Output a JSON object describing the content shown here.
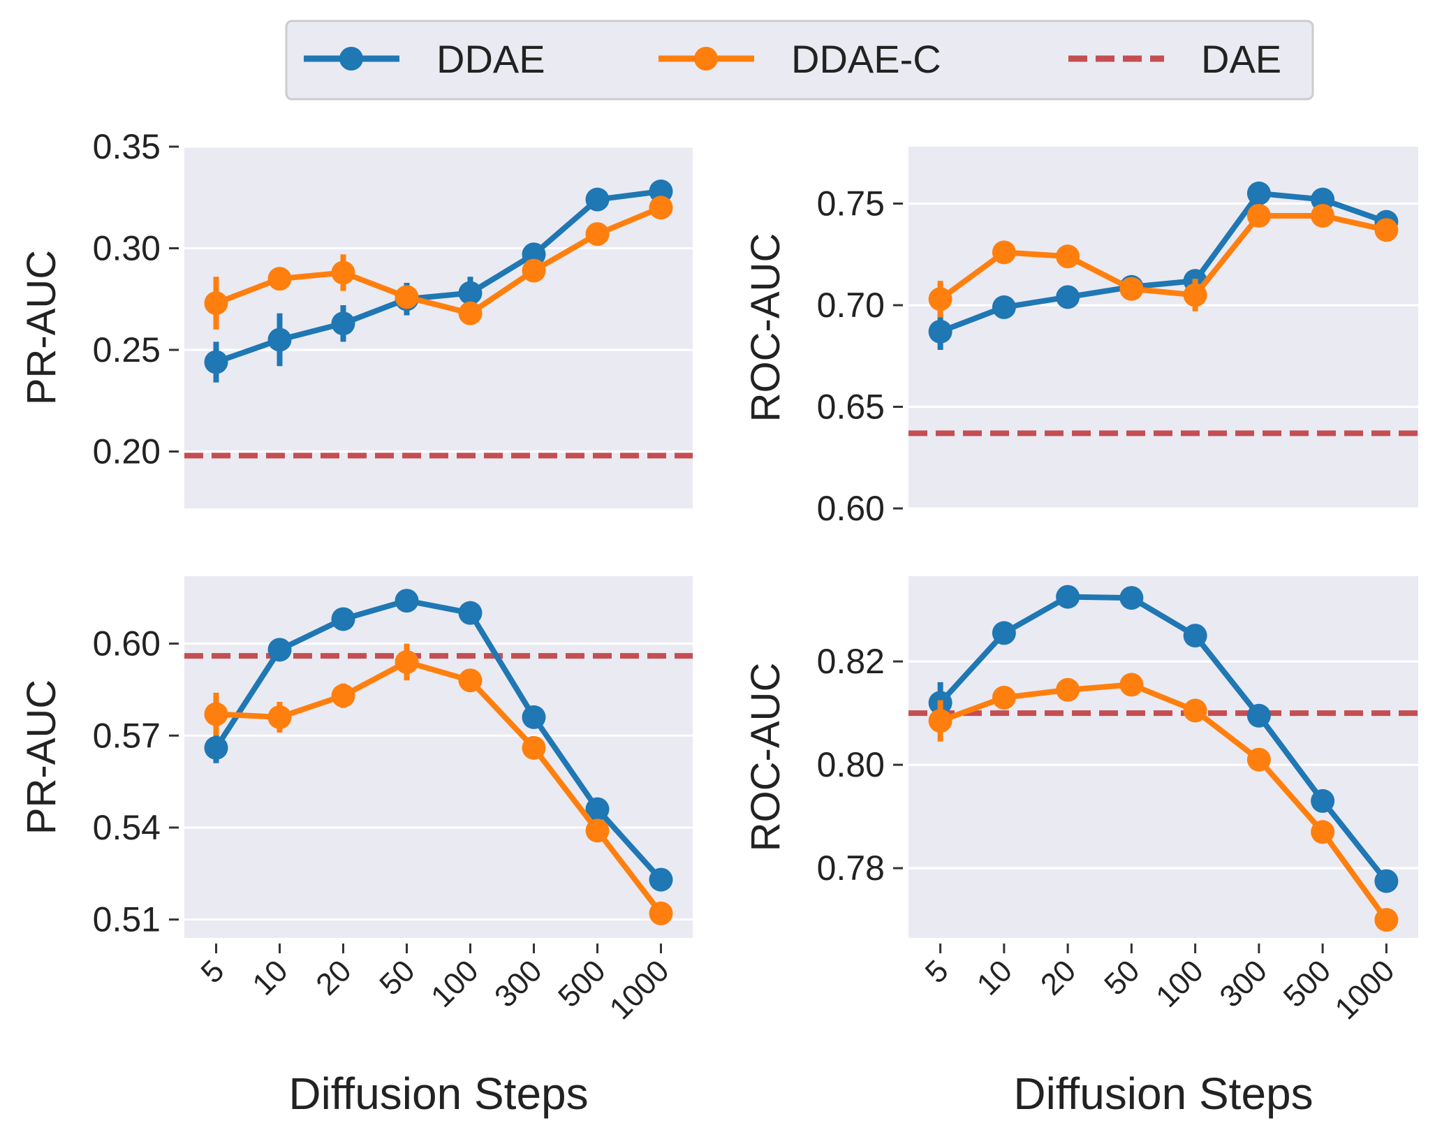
{
  "legend": {
    "entries": [
      {
        "name": "DDAE",
        "color": "#1f77b4",
        "style": "line-marker"
      },
      {
        "name": "DDAE-C",
        "color": "#ff7f0e",
        "style": "line-marker"
      },
      {
        "name": "DAE",
        "color": "#c44e52",
        "style": "dashed"
      }
    ]
  },
  "colors": {
    "ddae": "#1f77b4",
    "ddaec": "#ff7f0e",
    "dae": "#c44e52",
    "panel_bg": "#eaeaf2",
    "grid": "#ffffff"
  },
  "chart_data": [
    {
      "type": "line",
      "panel": "top-left",
      "title": "",
      "xlabel": "",
      "ylabel": "PR-AUC",
      "categories": [
        "5",
        "10",
        "20",
        "50",
        "100",
        "300",
        "500",
        "1000"
      ],
      "show_xticks": false,
      "ylim": [
        0.172,
        0.35
      ],
      "yticks": [
        0.2,
        0.25,
        0.3,
        0.35
      ],
      "ytick_labels": [
        "0.20",
        "0.25",
        "0.30",
        "0.35"
      ],
      "series": [
        {
          "name": "DDAE",
          "values": [
            0.244,
            0.255,
            0.263,
            0.275,
            0.278,
            0.297,
            0.324,
            0.328
          ],
          "err": [
            0.01,
            0.013,
            0.009,
            0.008,
            0.008,
            0.004,
            0.003,
            0.003
          ]
        },
        {
          "name": "DDAE-C",
          "values": [
            0.273,
            0.285,
            0.288,
            0.276,
            0.268,
            0.289,
            0.307,
            0.32
          ],
          "err": [
            0.013,
            0.004,
            0.009,
            0.004,
            0.003,
            0.003,
            0.003,
            0.003
          ]
        }
      ],
      "hline": {
        "name": "DAE",
        "value": 0.198
      }
    },
    {
      "type": "line",
      "panel": "top-right",
      "title": "",
      "xlabel": "",
      "ylabel": "ROC-AUC",
      "categories": [
        "5",
        "10",
        "20",
        "50",
        "100",
        "300",
        "500",
        "1000"
      ],
      "show_xticks": false,
      "ylim": [
        0.6,
        0.778
      ],
      "yticks": [
        0.6,
        0.65,
        0.7,
        0.75
      ],
      "ytick_labels": [
        "0.60",
        "0.65",
        "0.70",
        "0.75"
      ],
      "series": [
        {
          "name": "DDAE",
          "values": [
            0.687,
            0.699,
            0.704,
            0.709,
            0.712,
            0.755,
            0.752,
            0.741
          ],
          "err": [
            0.009,
            0.003,
            0.004,
            0.005,
            0.003,
            0.002,
            0.002,
            0.002
          ]
        },
        {
          "name": "DDAE-C",
          "values": [
            0.703,
            0.726,
            0.724,
            0.708,
            0.705,
            0.744,
            0.744,
            0.737
          ],
          "err": [
            0.009,
            0.004,
            0.004,
            0.004,
            0.008,
            0.002,
            0.002,
            0.002
          ]
        }
      ],
      "hline": {
        "name": "DAE",
        "value": 0.637
      }
    },
    {
      "type": "line",
      "panel": "bottom-left",
      "title": "",
      "xlabel": "Diffusion Steps",
      "ylabel": "PR-AUC",
      "categories": [
        "5",
        "10",
        "20",
        "50",
        "100",
        "300",
        "500",
        "1000"
      ],
      "show_xticks": true,
      "ylim": [
        0.504,
        0.622
      ],
      "yticks": [
        0.51,
        0.54,
        0.57,
        0.6
      ],
      "ytick_labels": [
        "0.51",
        "0.54",
        "0.57",
        "0.60"
      ],
      "series": [
        {
          "name": "DDAE",
          "values": [
            0.566,
            0.598,
            0.608,
            0.614,
            0.61,
            0.576,
            0.546,
            0.523
          ],
          "err": [
            0.005,
            0.002,
            0.003,
            0.002,
            0.002,
            0.003,
            0.003,
            0.003
          ]
        },
        {
          "name": "DDAE-C",
          "values": [
            0.577,
            0.576,
            0.583,
            0.594,
            0.588,
            0.566,
            0.539,
            0.512
          ],
          "err": [
            0.007,
            0.005,
            0.004,
            0.006,
            0.003,
            0.002,
            0.002,
            0.002
          ]
        }
      ],
      "hline": {
        "name": "DAE",
        "value": 0.596
      }
    },
    {
      "type": "line",
      "panel": "bottom-right",
      "title": "",
      "xlabel": "Diffusion Steps",
      "ylabel": "ROC-AUC",
      "categories": [
        "5",
        "10",
        "20",
        "50",
        "100",
        "300",
        "500",
        "1000"
      ],
      "show_xticks": true,
      "ylim": [
        0.7665,
        0.8365
      ],
      "yticks": [
        0.78,
        0.8,
        0.82
      ],
      "ytick_labels": [
        "0.78",
        "0.80",
        "0.82"
      ],
      "series": [
        {
          "name": "DDAE",
          "values": [
            0.812,
            0.8255,
            0.8325,
            0.8323,
            0.825,
            0.8095,
            0.793,
            0.7775
          ],
          "err": [
            0.004,
            0.001,
            0.001,
            0.001,
            0.001,
            0.001,
            0.001,
            0.001
          ]
        },
        {
          "name": "DDAE-C",
          "values": [
            0.8085,
            0.813,
            0.8145,
            0.8155,
            0.8105,
            0.801,
            0.787,
            0.77
          ],
          "err": [
            0.004,
            0.001,
            0.001,
            0.002,
            0.001,
            0.001,
            0.001,
            0.001
          ]
        }
      ],
      "hline": {
        "name": "DAE",
        "value": 0.81
      }
    }
  ]
}
